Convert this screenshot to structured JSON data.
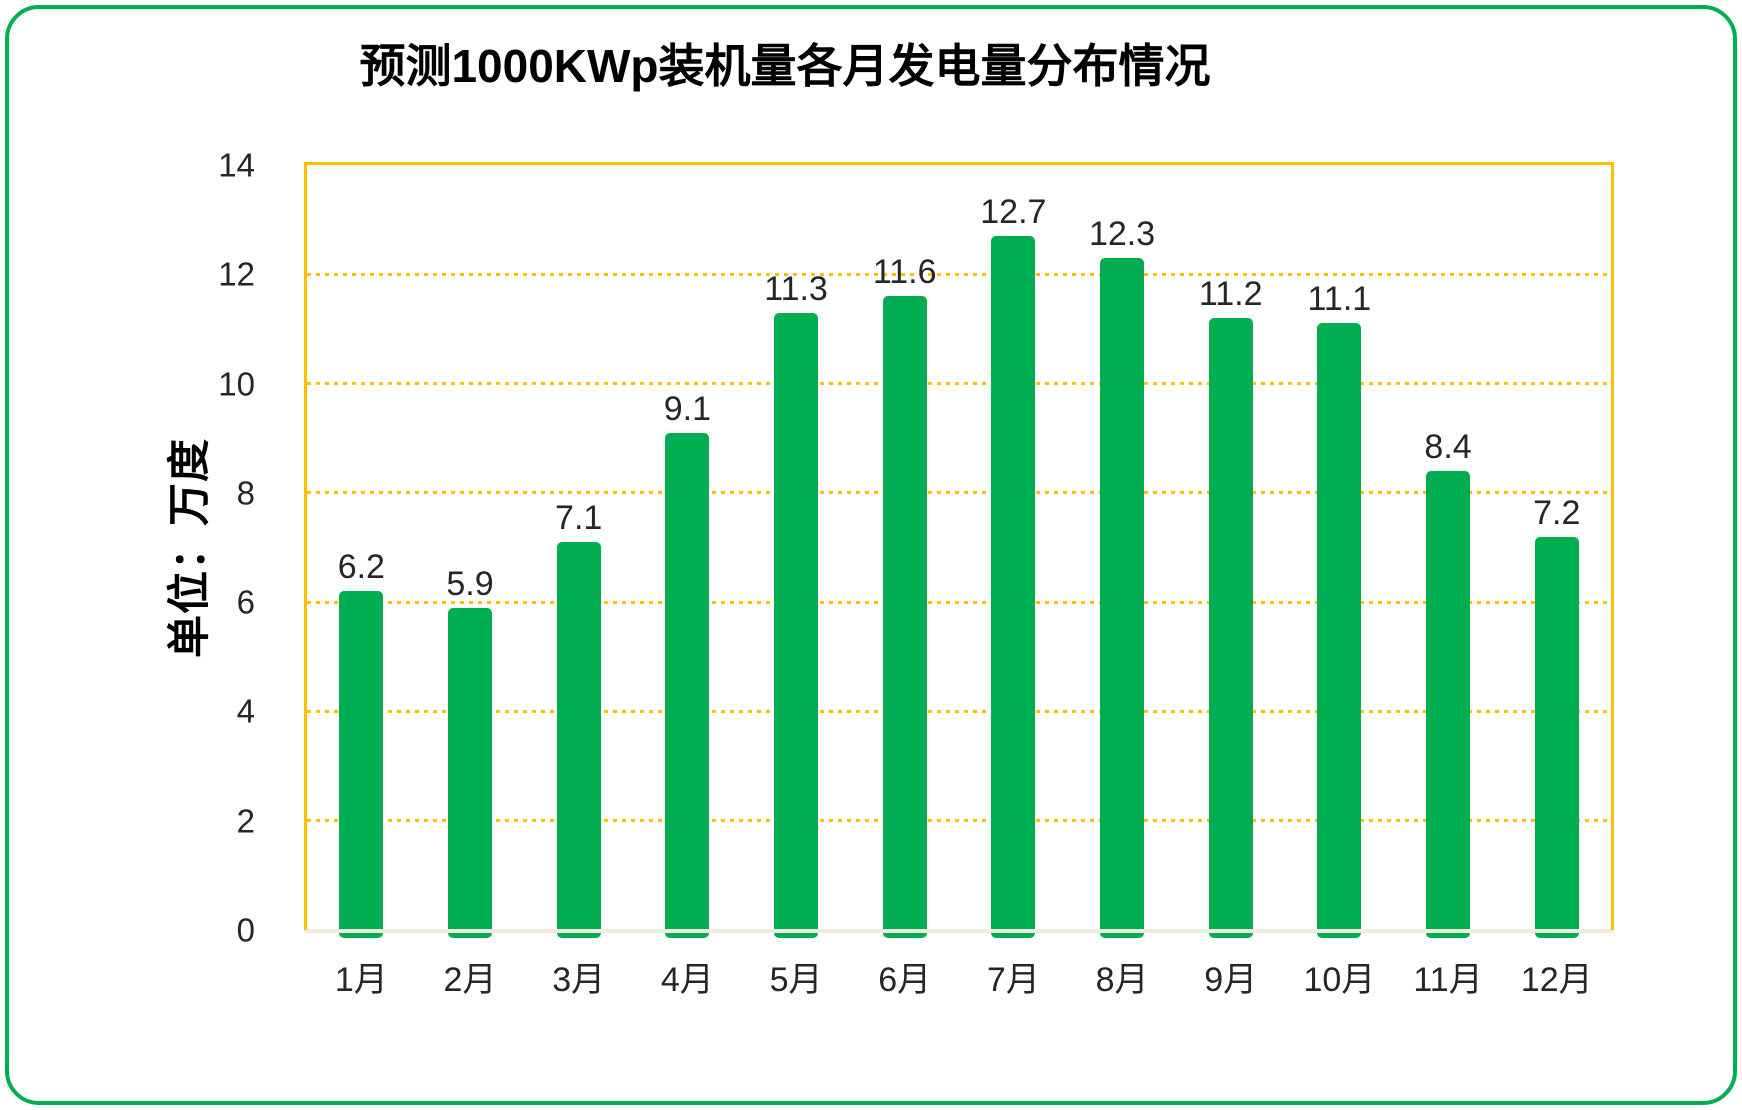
{
  "frame": {
    "border_color": "#00B050"
  },
  "chart_data": {
    "type": "bar",
    "title": "预测1000KWp装机量各月发电量分布情况",
    "ylabel": "单位：万度",
    "xlabel": "",
    "categories": [
      "1月",
      "2月",
      "3月",
      "4月",
      "5月",
      "6月",
      "7月",
      "8月",
      "9月",
      "10月",
      "11月",
      "12月"
    ],
    "values": [
      6.2,
      5.9,
      7.1,
      9.1,
      11.3,
      11.6,
      12.7,
      12.3,
      11.2,
      11.1,
      8.4,
      7.2
    ],
    "value_labels": [
      "6.2",
      "5.9",
      "7.1",
      "9.1",
      "11.3",
      "11.6",
      "12.7",
      "12.3",
      "11.2",
      "11.1",
      "8.4",
      "7.2"
    ],
    "ylim": [
      0,
      14
    ],
    "ytick_step": 2,
    "yticks": [
      14,
      12,
      10,
      8,
      6,
      4,
      2,
      0
    ],
    "grid": true,
    "grid_values": [
      2,
      4,
      6,
      8,
      10,
      12
    ],
    "legend": false,
    "data_labels": true,
    "bar_color": "#00AD50",
    "grid_color": "#FFC000",
    "frame_color": "#00B050",
    "axis_line_color": "#F0EBDC",
    "label_color": "#262626",
    "title_color": "#000000"
  }
}
